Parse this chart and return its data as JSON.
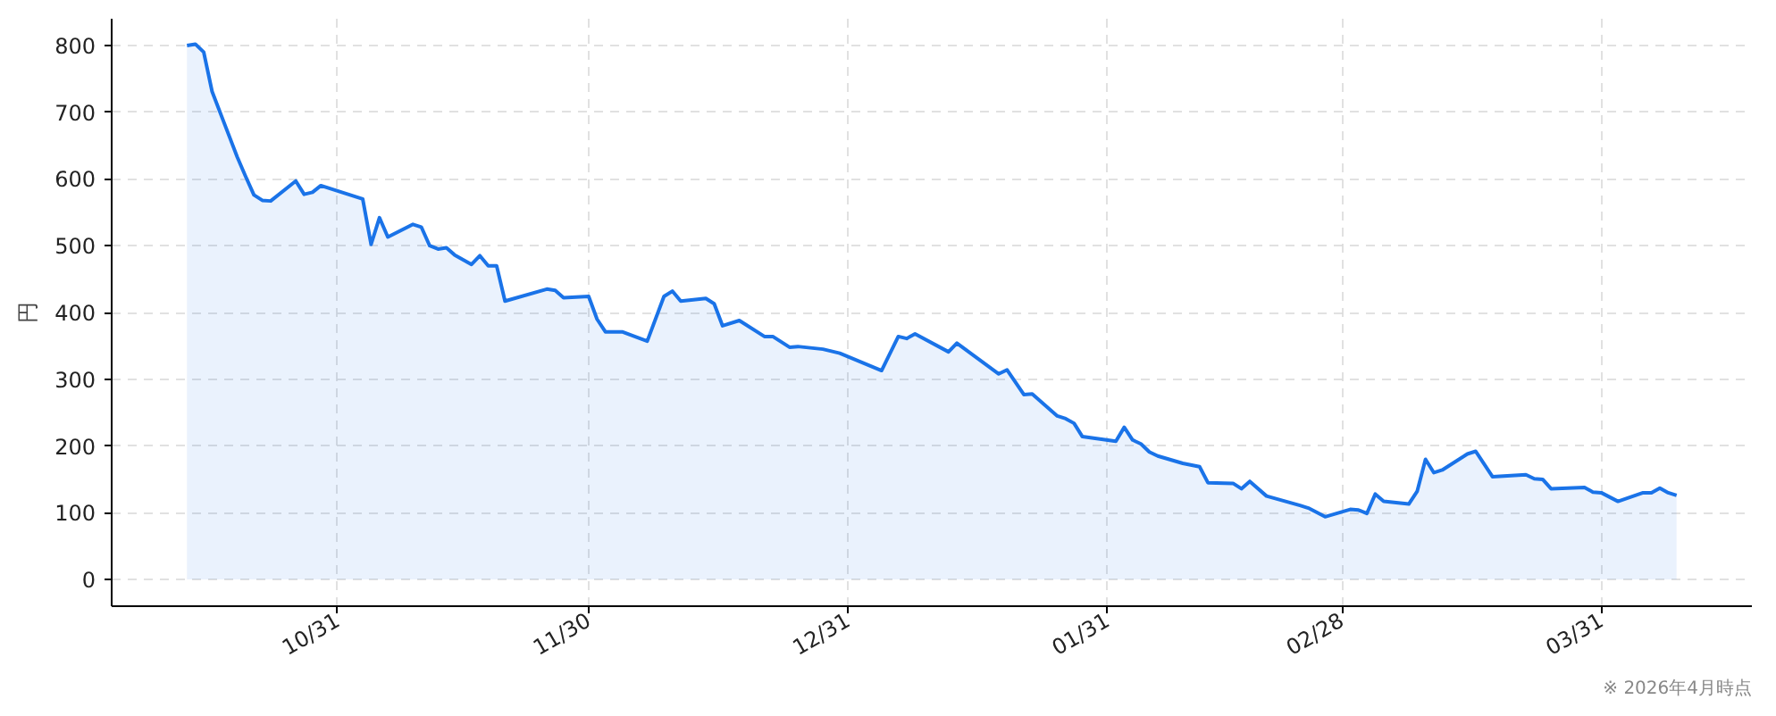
{
  "chart_data": {
    "type": "area",
    "ylabel": "円",
    "color": "#1a73e8",
    "x": [
      "2025-10-13",
      "2025-10-14",
      "2025-10-15",
      "2025-10-16",
      "2025-10-19",
      "2025-10-20",
      "2025-10-21",
      "2025-10-22",
      "2025-10-23",
      "2025-10-26",
      "2025-10-27",
      "2025-10-28",
      "2025-10-29",
      "2025-11-03",
      "2025-11-04",
      "2025-11-05",
      "2025-11-06",
      "2025-11-09",
      "2025-11-10",
      "2025-11-11",
      "2025-11-12",
      "2025-11-13",
      "2025-11-14",
      "2025-11-16",
      "2025-11-17",
      "2025-11-18",
      "2025-11-19",
      "2025-11-20",
      "2025-11-25",
      "2025-11-26",
      "2025-11-27",
      "2025-11-30",
      "2025-12-01",
      "2025-12-02",
      "2025-12-04",
      "2025-12-07",
      "2025-12-09",
      "2025-12-10",
      "2025-12-11",
      "2025-12-14",
      "2025-12-15",
      "2025-12-16",
      "2025-12-18",
      "2025-12-21",
      "2025-12-22",
      "2025-12-24",
      "2025-12-25",
      "2025-12-28",
      "2025-12-30",
      "2026-01-04",
      "2026-01-06",
      "2026-01-07",
      "2026-01-08",
      "2026-01-12",
      "2026-01-13",
      "2026-01-18",
      "2026-01-19",
      "2026-01-21",
      "2026-01-22",
      "2026-01-25",
      "2026-01-26",
      "2026-01-27",
      "2026-01-28",
      "2026-02-01",
      "2026-02-02",
      "2026-02-03",
      "2026-02-04",
      "2026-02-05",
      "2026-02-06",
      "2026-02-09",
      "2026-02-11",
      "2026-02-12",
      "2026-02-15",
      "2026-02-16",
      "2026-02-17",
      "2026-02-19",
      "2026-02-23",
      "2026-02-24",
      "2026-02-26",
      "2026-03-01",
      "2026-03-02",
      "2026-03-03",
      "2026-03-04",
      "2026-03-05",
      "2026-03-08",
      "2026-03-09",
      "2026-03-10",
      "2026-03-11",
      "2026-03-12",
      "2026-03-15",
      "2026-03-16",
      "2026-03-18",
      "2026-03-22",
      "2026-03-23",
      "2026-03-24",
      "2026-03-25",
      "2026-03-29",
      "2026-03-30",
      "2026-03-31",
      "2026-04-02",
      "2026-04-05",
      "2026-04-06",
      "2026-04-07",
      "2026-04-08",
      "2026-04-09"
    ],
    "values": [
      800,
      802,
      790,
      731,
      633,
      604,
      576,
      568,
      567,
      597,
      577,
      580,
      590,
      570,
      502,
      542,
      513,
      532,
      528,
      500,
      495,
      497,
      486,
      472,
      485,
      470,
      470,
      417,
      435,
      433,
      422,
      424,
      390,
      371,
      371,
      357,
      424,
      432,
      417,
      421,
      413,
      380,
      388,
      364,
      364,
      348,
      349,
      345,
      339,
      313,
      364,
      361,
      368,
      341,
      354,
      308,
      314,
      277,
      278,
      245,
      241,
      234,
      214,
      207,
      228,
      209,
      203,
      191,
      185,
      174,
      169,
      145,
      144,
      136,
      147,
      125,
      111,
      107,
      94,
      105,
      104,
      99,
      128,
      117,
      113,
      132,
      180,
      160,
      164,
      188,
      192,
      154,
      157,
      151,
      150,
      136,
      138,
      131,
      130,
      117,
      130,
      130,
      137,
      130,
      126
    ],
    "xlim": [
      "2025-10-04",
      "2026-04-18"
    ],
    "xticks": [
      {
        "value": "2025-10-31",
        "label": "10/31"
      },
      {
        "value": "2025-11-30",
        "label": "11/30"
      },
      {
        "value": "2025-12-31",
        "label": "12/31"
      },
      {
        "value": "2026-01-31",
        "label": "01/31"
      },
      {
        "value": "2026-02-28",
        "label": "02/28"
      },
      {
        "value": "2026-03-31",
        "label": "03/31"
      }
    ],
    "ylim": [
      -40,
      840
    ],
    "yticks": [
      0,
      100,
      200,
      300,
      400,
      500,
      600,
      700,
      800
    ],
    "grid": true,
    "annotations": [
      "※ 2026年4月時点"
    ]
  }
}
